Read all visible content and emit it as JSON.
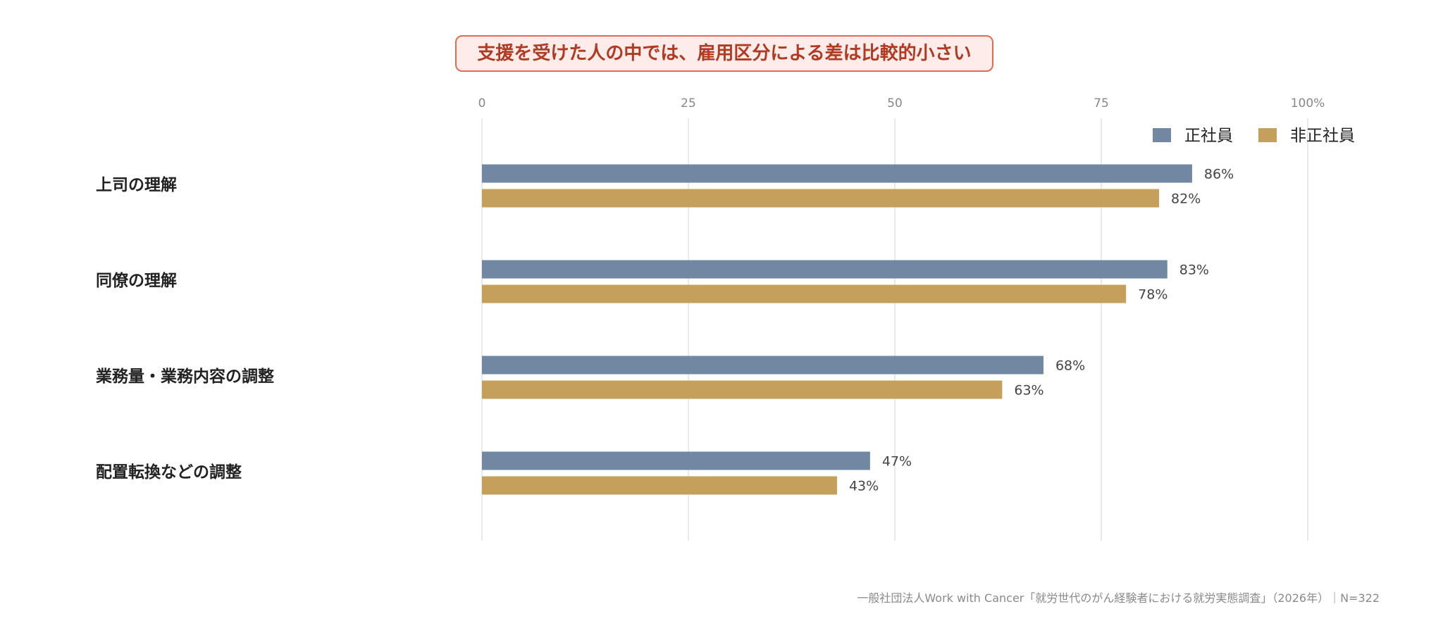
{
  "chart_data": {
    "type": "bar",
    "orientation": "horizontal",
    "title": "支援を受けた人の中では、雇用区分による差は比較的小さい",
    "categories": [
      "上司の理解",
      "同僚の理解",
      "業務量・業務内容の調整",
      "配置転換などの調整"
    ],
    "series": [
      {
        "name": "正社員",
        "color": "#7287a1",
        "values": [
          86,
          83,
          68,
          47
        ]
      },
      {
        "name": "非正社員",
        "color": "#c4a05c",
        "values": [
          82,
          78,
          63,
          43
        ]
      }
    ],
    "xlim": [
      0,
      100
    ],
    "x_ticks": [
      0,
      25,
      50,
      75,
      100
    ],
    "x_tick_labels": [
      "0",
      "25",
      "50",
      "75",
      "100%"
    ],
    "value_suffix": "%",
    "grid": true,
    "legend_position": "top-right"
  },
  "footer": {
    "source": "一般社団法人Work with Cancer「就労世代のがん経験者における就労実態調査」（2026年）｜N=322"
  }
}
